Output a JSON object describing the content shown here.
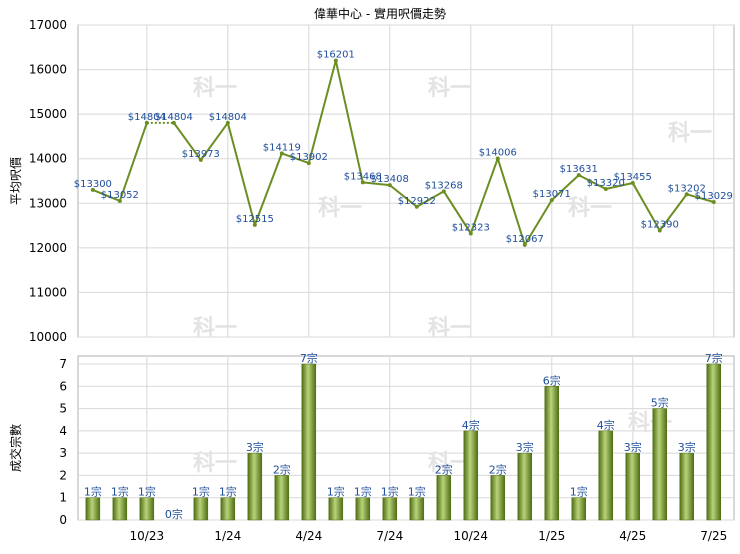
{
  "title": "偉華中心 - 實用呎價走勢",
  "chart_data": [
    {
      "type": "line",
      "ylabel": "平均呎價",
      "ylim": [
        10000,
        17000
      ],
      "y_ticks": [
        "10000",
        "11000",
        "12000",
        "13000",
        "14000",
        "15000",
        "16000",
        "17000"
      ],
      "points": [
        {
          "x": 0,
          "value": 13300,
          "label": "$13300"
        },
        {
          "x": 1,
          "value": 13052,
          "label": "$13052"
        },
        {
          "x": 2,
          "value": 14804,
          "label": "$14804"
        },
        {
          "x": 3,
          "value": 14804,
          "label": "$14804"
        },
        {
          "x": 4,
          "value": 13973,
          "label": "$13973"
        },
        {
          "x": 5,
          "value": 14804,
          "label": "$14804"
        },
        {
          "x": 6,
          "value": 12515,
          "label": "$12515"
        },
        {
          "x": 7,
          "value": 14119,
          "label": "$14119"
        },
        {
          "x": 8,
          "value": 13902,
          "label": "$13902"
        },
        {
          "x": 9,
          "value": 16201,
          "label": "$16201"
        },
        {
          "x": 10,
          "value": 13468,
          "label": "$13468"
        },
        {
          "x": 11,
          "value": 13408,
          "label": "$13408"
        },
        {
          "x": 12,
          "value": 12922,
          "label": "$12922"
        },
        {
          "x": 13,
          "value": 13268,
          "label": "$13268"
        },
        {
          "x": 14,
          "value": 12323,
          "label": "$12323"
        },
        {
          "x": 15,
          "value": 14006,
          "label": "$14006"
        },
        {
          "x": 16,
          "value": 12067,
          "label": "$12067"
        },
        {
          "x": 17,
          "value": 13071,
          "label": "$13071"
        },
        {
          "x": 18,
          "value": 13631,
          "label": "$13631"
        },
        {
          "x": 19,
          "value": 13320,
          "label": "$13320"
        },
        {
          "x": 20,
          "value": 13455,
          "label": "$13455"
        },
        {
          "x": 21,
          "value": 12390,
          "label": "$12390"
        },
        {
          "x": 22,
          "value": 13202,
          "label": "$13202"
        },
        {
          "x": 23,
          "value": 13029,
          "label": "$13029"
        }
      ],
      "no_data_segments": [
        [
          2,
          3
        ]
      ]
    },
    {
      "type": "bar",
      "ylabel": "成交宗數",
      "ylim": [
        0,
        7
      ],
      "y_ticks": [
        "0",
        "1",
        "2",
        "3",
        "4",
        "5",
        "6",
        "7"
      ],
      "values": [
        1,
        1,
        1,
        0,
        1,
        1,
        3,
        2,
        7,
        1,
        1,
        1,
        1,
        2,
        4,
        2,
        3,
        6,
        1,
        4,
        3,
        5,
        3,
        7
      ],
      "labels": [
        "1宗",
        "1宗",
        "1宗",
        "0宗",
        "1宗",
        "1宗",
        "3宗",
        "2宗",
        "7宗",
        "1宗",
        "1宗",
        "1宗",
        "1宗",
        "2宗",
        "4宗",
        "2宗",
        "3宗",
        "6宗",
        "1宗",
        "4宗",
        "3宗",
        "5宗",
        "3宗",
        "7宗"
      ]
    }
  ],
  "x_axis": {
    "ticks": [
      {
        "index": 2,
        "label": "10/23"
      },
      {
        "index": 5,
        "label": "1/24"
      },
      {
        "index": 8,
        "label": "4/24"
      },
      {
        "index": 11,
        "label": "7/24"
      },
      {
        "index": 14,
        "label": "10/24"
      },
      {
        "index": 17,
        "label": "1/25"
      },
      {
        "index": 20,
        "label": "4/25"
      },
      {
        "index": 23,
        "label": "7/25"
      }
    ]
  },
  "watermark": "科一",
  "colors": {
    "line": "#6b8e23",
    "bar": "#7a9a2e",
    "label": "#1f4e9a",
    "grid": "#d8d8d8"
  }
}
